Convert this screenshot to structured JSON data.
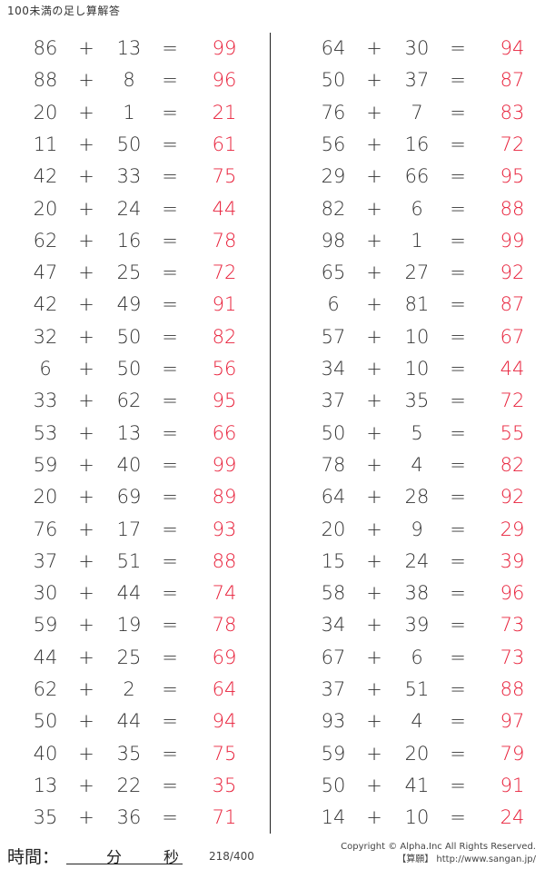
{
  "title": "100未満の足し算解答",
  "symbols": {
    "plus": "+",
    "equals": "="
  },
  "colors": {
    "answer": "#e8203a",
    "text": "#333333"
  },
  "left_column": [
    [
      86,
      13,
      99
    ],
    [
      88,
      8,
      96
    ],
    [
      20,
      1,
      21
    ],
    [
      11,
      50,
      61
    ],
    [
      42,
      33,
      75
    ],
    [
      20,
      24,
      44
    ],
    [
      62,
      16,
      78
    ],
    [
      47,
      25,
      72
    ],
    [
      42,
      49,
      91
    ],
    [
      32,
      50,
      82
    ],
    [
      6,
      50,
      56
    ],
    [
      33,
      62,
      95
    ],
    [
      53,
      13,
      66
    ],
    [
      59,
      40,
      99
    ],
    [
      20,
      69,
      89
    ],
    [
      76,
      17,
      93
    ],
    [
      37,
      51,
      88
    ],
    [
      30,
      44,
      74
    ],
    [
      59,
      19,
      78
    ],
    [
      44,
      25,
      69
    ],
    [
      62,
      2,
      64
    ],
    [
      50,
      44,
      94
    ],
    [
      40,
      35,
      75
    ],
    [
      13,
      22,
      35
    ],
    [
      35,
      36,
      71
    ]
  ],
  "right_column": [
    [
      64,
      30,
      94
    ],
    [
      50,
      37,
      87
    ],
    [
      76,
      7,
      83
    ],
    [
      56,
      16,
      72
    ],
    [
      29,
      66,
      95
    ],
    [
      82,
      6,
      88
    ],
    [
      98,
      1,
      99
    ],
    [
      65,
      27,
      92
    ],
    [
      6,
      81,
      87
    ],
    [
      57,
      10,
      67
    ],
    [
      34,
      10,
      44
    ],
    [
      37,
      35,
      72
    ],
    [
      50,
      5,
      55
    ],
    [
      78,
      4,
      82
    ],
    [
      64,
      28,
      92
    ],
    [
      20,
      9,
      29
    ],
    [
      15,
      24,
      39
    ],
    [
      58,
      38,
      96
    ],
    [
      34,
      39,
      73
    ],
    [
      67,
      6,
      73
    ],
    [
      37,
      51,
      88
    ],
    [
      93,
      4,
      97
    ],
    [
      59,
      20,
      79
    ],
    [
      50,
      41,
      91
    ],
    [
      14,
      10,
      24
    ]
  ],
  "footer": {
    "time_label": "時間：",
    "minutes_label": "分",
    "seconds_label": "秒",
    "page": "218/400",
    "copyright": "Copyright © Alpha.Inc All Rights Reserved.",
    "site": "【算願】 http://www.sangan.jp/"
  }
}
